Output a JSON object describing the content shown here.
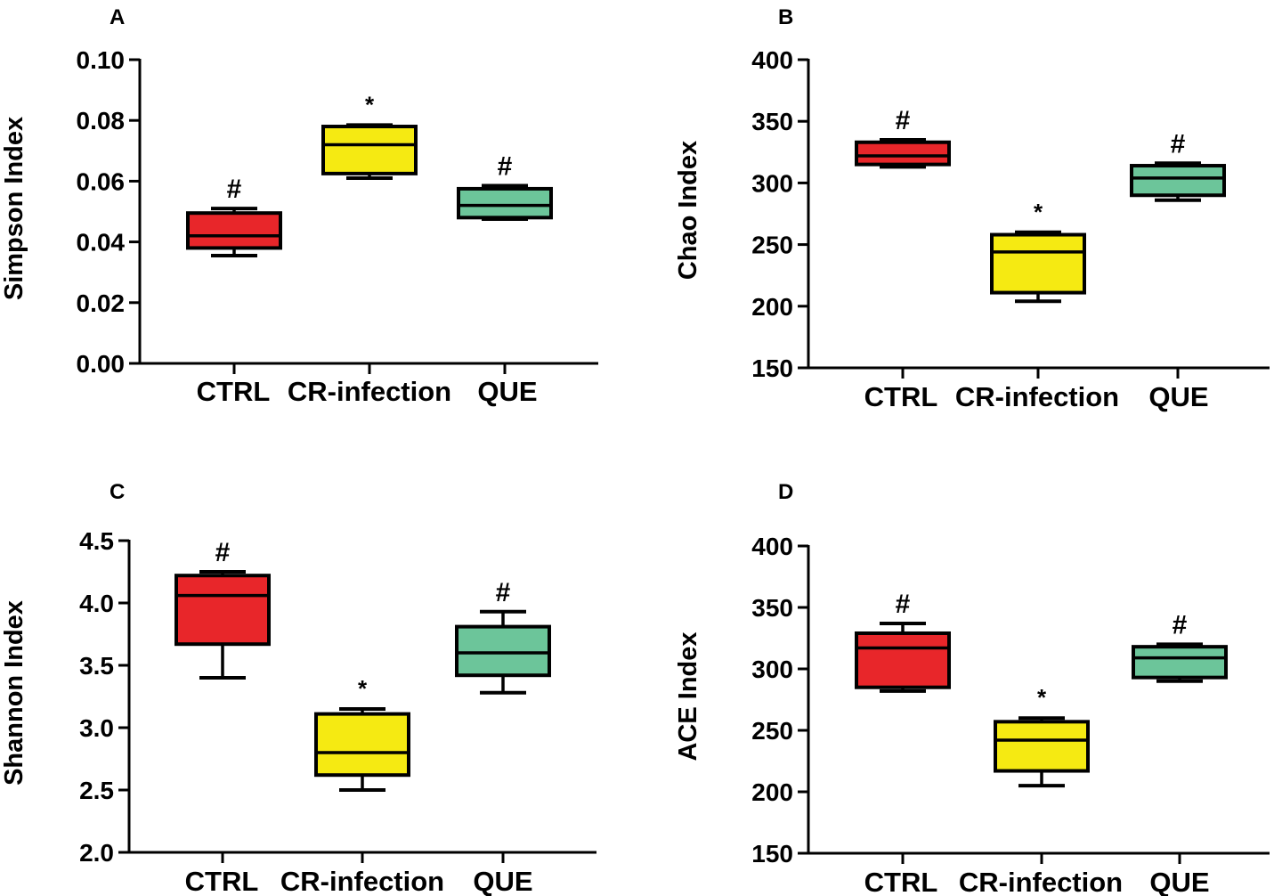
{
  "chart_data": [
    {
      "type": "box",
      "panel": "A",
      "ylabel": "Simpson Index",
      "categories": [
        "CTRL",
        "CR-infection",
        "QUE"
      ],
      "ylim": [
        0,
        0.1
      ],
      "yticks": [
        0,
        0.02,
        0.04,
        0.06,
        0.08,
        0.1
      ],
      "ytick_labels": [
        "0.00",
        "0.02",
        "0.04",
        "0.06",
        "0.08",
        "0.10"
      ],
      "colors": [
        "#e8262a",
        "#f5ea12",
        "#6cc59a"
      ],
      "boxes": [
        {
          "min": 0.0355,
          "q1": 0.038,
          "median": 0.042,
          "q3": 0.0495,
          "max": 0.051
        },
        {
          "min": 0.061,
          "q1": 0.0625,
          "median": 0.072,
          "q3": 0.078,
          "max": 0.0785
        },
        {
          "min": 0.0475,
          "q1": 0.048,
          "median": 0.052,
          "q3": 0.0575,
          "max": 0.0585
        }
      ],
      "annotations": [
        "#",
        "*",
        "#"
      ]
    },
    {
      "type": "box",
      "panel": "B",
      "ylabel": "Chao Index",
      "categories": [
        "CTRL",
        "CR-infection",
        "QUE"
      ],
      "ylim": [
        150,
        400
      ],
      "yticks": [
        150,
        200,
        250,
        300,
        350,
        400
      ],
      "ytick_labels": [
        "150",
        "200",
        "250",
        "300",
        "350",
        "400"
      ],
      "colors": [
        "#e8262a",
        "#f5ea12",
        "#6cc59a"
      ],
      "boxes": [
        {
          "min": 313,
          "q1": 315,
          "median": 322,
          "q3": 333,
          "max": 335
        },
        {
          "min": 204,
          "q1": 211,
          "median": 244,
          "q3": 258,
          "max": 260
        },
        {
          "min": 286,
          "q1": 290,
          "median": 304,
          "q3": 314,
          "max": 316
        }
      ],
      "annotations": [
        "#",
        "*",
        "#"
      ]
    },
    {
      "type": "box",
      "panel": "C",
      "ylabel": "Shannon Index",
      "categories": [
        "CTRL",
        "CR-infection",
        "QUE"
      ],
      "ylim": [
        2,
        4.5
      ],
      "yticks": [
        2,
        2.5,
        3,
        3.5,
        4,
        4.5
      ],
      "ytick_labels": [
        "2.0",
        "2.5",
        "3.0",
        "3.5",
        "4.0",
        "4.5"
      ],
      "colors": [
        "#e8262a",
        "#f5ea12",
        "#6cc59a"
      ],
      "boxes": [
        {
          "min": 3.4,
          "q1": 3.67,
          "median": 4.06,
          "q3": 4.22,
          "max": 4.25
        },
        {
          "min": 2.5,
          "q1": 2.62,
          "median": 2.8,
          "q3": 3.11,
          "max": 3.15
        },
        {
          "min": 3.28,
          "q1": 3.42,
          "median": 3.6,
          "q3": 3.81,
          "max": 3.93
        }
      ],
      "annotations": [
        "#",
        "*",
        "#"
      ]
    },
    {
      "type": "box",
      "panel": "D",
      "ylabel": "ACE Index",
      "categories": [
        "CTRL",
        "CR-infection",
        "QUE"
      ],
      "ylim": [
        150,
        400
      ],
      "yticks": [
        150,
        200,
        250,
        300,
        350,
        400
      ],
      "ytick_labels": [
        "150",
        "200",
        "250",
        "300",
        "350",
        "400"
      ],
      "colors": [
        "#e8262a",
        "#f5ea12",
        "#6cc59a"
      ],
      "boxes": [
        {
          "min": 282,
          "q1": 285,
          "median": 317,
          "q3": 329,
          "max": 337
        },
        {
          "min": 205,
          "q1": 217,
          "median": 242,
          "q3": 257,
          "max": 260
        },
        {
          "min": 290,
          "q1": 293,
          "median": 309,
          "q3": 318,
          "max": 320
        }
      ],
      "annotations": [
        "#",
        "*",
        "#"
      ]
    }
  ]
}
